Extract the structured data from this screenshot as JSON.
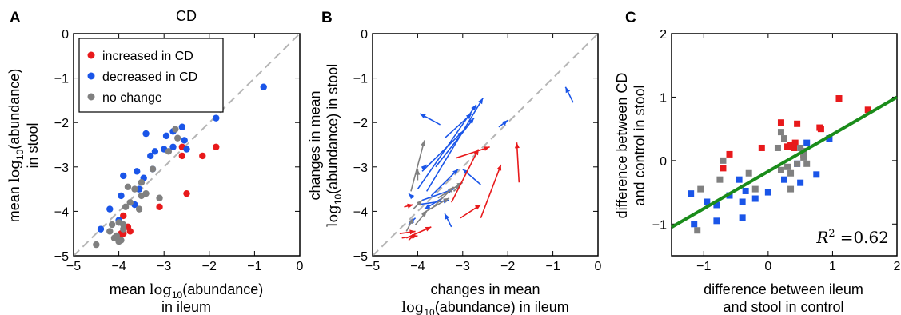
{
  "chart_data": [
    {
      "panel_letter": "A",
      "type": "scatter",
      "title": "CD",
      "xlabel_line1_pre": "mean ",
      "xlabel_math": "log",
      "xlabel_sub": "10",
      "xlabel_line1_post": "(abundance)",
      "xlabel_line2": "in ileum",
      "ylabel_line1_pre": "mean ",
      "ylabel_math": "log",
      "ylabel_sub": "10",
      "ylabel_line1_post": "(abundance)",
      "ylabel_line2": "in stool",
      "xlim": [
        -5,
        0
      ],
      "ylim": [
        -5,
        0
      ],
      "xticks": [
        "-5",
        "-4",
        "-3",
        "-2",
        "-1",
        "0"
      ],
      "yticks": [
        "-5",
        "-4",
        "-3",
        "-2",
        "-1",
        "0"
      ],
      "identity_line": true,
      "legend": [
        {
          "label": "increased in CD",
          "color": "#e8191b"
        },
        {
          "label": "decreased in CD",
          "color": "#1a55e8"
        },
        {
          "label": "no change",
          "color": "#808080"
        }
      ],
      "series": [
        {
          "name": "increased in CD",
          "color": "#e8191b",
          "points": [
            [
              -2.6,
              -2.55
            ],
            [
              -2.6,
              -2.75
            ],
            [
              -1.85,
              -2.55
            ],
            [
              -2.15,
              -2.75
            ],
            [
              -3.1,
              -3.9
            ],
            [
              -2.5,
              -3.6
            ],
            [
              -3.9,
              -4.1
            ],
            [
              -3.8,
              -4.35
            ],
            [
              -3.75,
              -4.45
            ],
            [
              -3.95,
              -4.5
            ],
            [
              -3.9,
              -4.5
            ]
          ]
        },
        {
          "name": "decreased in CD",
          "color": "#1a55e8",
          "points": [
            [
              -0.8,
              -1.2
            ],
            [
              -1.85,
              -1.9
            ],
            [
              -2.8,
              -2.2
            ],
            [
              -2.6,
              -2.1
            ],
            [
              -3.4,
              -2.25
            ],
            [
              -2.95,
              -2.3
            ],
            [
              -2.55,
              -2.4
            ],
            [
              -3.0,
              -2.6
            ],
            [
              -2.8,
              -2.55
            ],
            [
              -2.5,
              -2.6
            ],
            [
              -3.2,
              -2.65
            ],
            [
              -3.3,
              -2.75
            ],
            [
              -3.6,
              -3.1
            ],
            [
              -3.25,
              -3.05
            ],
            [
              -3.45,
              -3.25
            ],
            [
              -3.9,
              -3.2
            ],
            [
              -3.55,
              -3.5
            ],
            [
              -3.95,
              -3.65
            ],
            [
              -3.65,
              -3.85
            ],
            [
              -4.2,
              -3.95
            ],
            [
              -4.0,
              -4.2
            ],
            [
              -4.4,
              -4.4
            ]
          ]
        },
        {
          "name": "no change",
          "color": "#808080",
          "points": [
            [
              -2.75,
              -2.15
            ],
            [
              -2.7,
              -2.35
            ],
            [
              -2.9,
              -2.65
            ],
            [
              -3.25,
              -3.05
            ],
            [
              -3.5,
              -3.35
            ],
            [
              -3.65,
              -3.5
            ],
            [
              -3.8,
              -3.45
            ],
            [
              -3.4,
              -3.6
            ],
            [
              -3.5,
              -3.65
            ],
            [
              -3.1,
              -3.7
            ],
            [
              -3.75,
              -3.8
            ],
            [
              -3.85,
              -3.9
            ],
            [
              -3.55,
              -3.95
            ],
            [
              -4.0,
              -4.25
            ],
            [
              -3.9,
              -4.3
            ],
            [
              -4.15,
              -4.3
            ],
            [
              -4.2,
              -4.45
            ],
            [
              -3.9,
              -4.4
            ],
            [
              -4.05,
              -4.55
            ],
            [
              -3.95,
              -4.65
            ],
            [
              -4.1,
              -4.6
            ],
            [
              -4.0,
              -4.68
            ],
            [
              -4.5,
              -4.75
            ]
          ]
        }
      ]
    },
    {
      "panel_letter": "B",
      "type": "scatter",
      "xlabel_line1": "changes in mean",
      "xlabel_math": "log",
      "xlabel_sub": "10",
      "xlabel_line2_post": "(abundance) in ileum",
      "ylabel_line1": "changes in mean",
      "ylabel_math": "log",
      "ylabel_sub": "10",
      "ylabel_line2_post": "(abundance) in stool",
      "xlim": [
        -5,
        0
      ],
      "ylim": [
        -5,
        0
      ],
      "xticks": [
        "-5",
        "-4",
        "-3",
        "-2",
        "-1",
        "0"
      ],
      "yticks": [
        "-5",
        "-4",
        "-3",
        "-2",
        "-1",
        "0"
      ],
      "identity_line": true,
      "arrows": [
        {
          "color": "#1a55e8",
          "from": [
            -3.8,
            -3.55
          ],
          "to": [
            -2.55,
            -1.45
          ]
        },
        {
          "color": "#1a55e8",
          "from": [
            -4.0,
            -3.5
          ],
          "to": [
            -2.7,
            -1.6
          ]
        },
        {
          "color": "#1a55e8",
          "from": [
            -3.6,
            -3.0
          ],
          "to": [
            -2.75,
            -1.9
          ]
        },
        {
          "color": "#1a55e8",
          "from": [
            -3.4,
            -2.35
          ],
          "to": [
            -2.8,
            -1.8
          ]
        },
        {
          "color": "#1a55e8",
          "from": [
            -3.9,
            -3.1
          ],
          "to": [
            -3.0,
            -2.2
          ]
        },
        {
          "color": "#1a55e8",
          "from": [
            -3.5,
            -2.05
          ],
          "to": [
            -3.95,
            -1.8
          ]
        },
        {
          "color": "#1a55e8",
          "from": [
            -2.2,
            -2.1
          ],
          "to": [
            -2.0,
            -1.95
          ]
        },
        {
          "color": "#1a55e8",
          "from": [
            -0.55,
            -1.55
          ],
          "to": [
            -0.72,
            -1.2
          ]
        },
        {
          "color": "#1a55e8",
          "from": [
            -3.7,
            -3.65
          ],
          "to": [
            -3.1,
            -3.05
          ]
        },
        {
          "color": "#1a55e8",
          "from": [
            -3.9,
            -3.75
          ],
          "to": [
            -3.2,
            -3.5
          ]
        },
        {
          "color": "#1a55e8",
          "from": [
            -4.0,
            -3.85
          ],
          "to": [
            -3.3,
            -3.75
          ]
        },
        {
          "color": "#1a55e8",
          "from": [
            -2.6,
            -3.4
          ],
          "to": [
            -3.0,
            -3.05
          ]
        },
        {
          "color": "#1a55e8",
          "from": [
            -3.25,
            -4.35
          ],
          "to": [
            -3.4,
            -4.05
          ]
        },
        {
          "color": "#1a55e8",
          "from": [
            -3.45,
            -3.7
          ],
          "to": [
            -3.85,
            -3.95
          ]
        },
        {
          "color": "#1a55e8",
          "from": [
            -4.1,
            -3.7
          ],
          "to": [
            -4.2,
            -3.6
          ]
        },
        {
          "color": "#1a55e8",
          "from": [
            -3.9,
            -3.05
          ],
          "to": [
            -3.8,
            -2.95
          ]
        },
        {
          "color": "#1a55e8",
          "from": [
            -4.05,
            -4.15
          ],
          "to": [
            -4.2,
            -4.3
          ]
        },
        {
          "color": "#808080",
          "from": [
            -4.15,
            -3.55
          ],
          "to": [
            -3.85,
            -2.4
          ]
        },
        {
          "color": "#808080",
          "from": [
            -4.0,
            -3.3
          ],
          "to": [
            -4.0,
            -3.05
          ]
        },
        {
          "color": "#808080",
          "from": [
            -3.55,
            -3.7
          ],
          "to": [
            -3.0,
            -3.35
          ]
        },
        {
          "color": "#808080",
          "from": [
            -3.9,
            -4.05
          ],
          "to": [
            -3.3,
            -3.7
          ]
        },
        {
          "color": "#808080",
          "from": [
            -3.7,
            -3.95
          ],
          "to": [
            -3.2,
            -3.45
          ]
        },
        {
          "color": "#808080",
          "from": [
            -4.1,
            -3.95
          ],
          "to": [
            -3.9,
            -3.75
          ]
        },
        {
          "color": "#808080",
          "from": [
            -4.05,
            -4.3
          ],
          "to": [
            -3.8,
            -4.0
          ]
        },
        {
          "color": "#808080",
          "from": [
            -4.25,
            -4.45
          ],
          "to": [
            -4.1,
            -4.15
          ]
        },
        {
          "color": "#808080",
          "from": [
            -3.2,
            -3.55
          ],
          "to": [
            -3.05,
            -3.4
          ]
        },
        {
          "color": "#e8191b",
          "from": [
            -3.15,
            -2.8
          ],
          "to": [
            -2.4,
            -2.55
          ]
        },
        {
          "color": "#e8191b",
          "from": [
            -3.25,
            -3.8
          ],
          "to": [
            -2.65,
            -2.6
          ]
        },
        {
          "color": "#e8191b",
          "from": [
            -2.6,
            -4.15
          ],
          "to": [
            -2.15,
            -2.95
          ]
        },
        {
          "color": "#e8191b",
          "from": [
            -1.75,
            -3.35
          ],
          "to": [
            -1.8,
            -2.45
          ]
        },
        {
          "color": "#e8191b",
          "from": [
            -3.05,
            -4.15
          ],
          "to": [
            -2.6,
            -3.85
          ]
        },
        {
          "color": "#e8191b",
          "from": [
            -4.3,
            -3.9
          ],
          "to": [
            -4.1,
            -3.85
          ]
        },
        {
          "color": "#e8191b",
          "from": [
            -4.25,
            -4.6
          ],
          "to": [
            -3.7,
            -4.35
          ]
        },
        {
          "color": "#e8191b",
          "from": [
            -4.4,
            -4.5
          ],
          "to": [
            -4.05,
            -4.45
          ]
        },
        {
          "color": "#e8191b",
          "from": [
            -4.35,
            -4.6
          ],
          "to": [
            -4.0,
            -4.55
          ]
        },
        {
          "color": "#e8191b",
          "from": [
            -4.2,
            -4.65
          ],
          "to": [
            -4.05,
            -4.5
          ]
        }
      ]
    },
    {
      "panel_letter": "C",
      "type": "scatter",
      "xlabel_line1": "difference between ileum",
      "xlabel_line2": "and stool in control",
      "ylabel_line1": "difference between CD",
      "ylabel_line2": "and control in stool",
      "xlim": [
        -1.5,
        2
      ],
      "ylim": [
        -1.5,
        2
      ],
      "xticks": [
        "-1",
        "0",
        "1",
        "2"
      ],
      "yticks": [
        "-1",
        "0",
        "1",
        "2"
      ],
      "annotation_math": "R",
      "annotation_sup": "2",
      "annotation_value": "=0.62",
      "fit_line": {
        "color": "#1a8c1a",
        "x": [
          -1.5,
          2.0
        ],
        "y": [
          -1.05,
          1.0
        ]
      },
      "series": [
        {
          "name": "red",
          "color": "#e8191b",
          "points": [
            [
              1.1,
              0.98
            ],
            [
              1.55,
              0.8
            ],
            [
              0.2,
              0.6
            ],
            [
              0.45,
              0.58
            ],
            [
              0.8,
              0.52
            ],
            [
              0.82,
              0.5
            ],
            [
              -0.1,
              0.2
            ],
            [
              0.3,
              0.22
            ],
            [
              0.35,
              0.25
            ],
            [
              0.4,
              0.2
            ],
            [
              0.42,
              0.28
            ],
            [
              -0.6,
              0.1
            ],
            [
              0.55,
              0.1
            ],
            [
              -0.7,
              -0.12
            ]
          ]
        },
        {
          "name": "blue",
          "color": "#1a55e8",
          "points": [
            [
              0.95,
              0.35
            ],
            [
              0.6,
              0.28
            ],
            [
              0.45,
              -0.05
            ],
            [
              0.5,
              -0.35
            ],
            [
              0.25,
              -0.3
            ],
            [
              0.0,
              -0.5
            ],
            [
              -0.45,
              -0.3
            ],
            [
              -0.6,
              -0.55
            ],
            [
              -0.35,
              -0.48
            ],
            [
              -0.2,
              -0.6
            ],
            [
              -0.4,
              -0.65
            ],
            [
              -0.4,
              -0.9
            ],
            [
              -0.8,
              -0.7
            ],
            [
              -0.95,
              -0.65
            ],
            [
              -1.2,
              -0.52
            ],
            [
              -1.15,
              -1.0
            ],
            [
              -0.8,
              -0.95
            ],
            [
              0.75,
              -0.22
            ]
          ]
        },
        {
          "name": "gray",
          "color": "#808080",
          "points": [
            [
              0.2,
              0.45
            ],
            [
              0.25,
              0.35
            ],
            [
              0.15,
              0.2
            ],
            [
              0.5,
              0.2
            ],
            [
              0.55,
              0.15
            ],
            [
              -0.7,
              0.0
            ],
            [
              0.55,
              0.05
            ],
            [
              0.6,
              -0.05
            ],
            [
              0.45,
              -0.05
            ],
            [
              0.2,
              -0.15
            ],
            [
              0.3,
              -0.1
            ],
            [
              0.35,
              -0.2
            ],
            [
              -0.3,
              -0.2
            ],
            [
              -0.75,
              -0.3
            ],
            [
              -1.05,
              -0.45
            ],
            [
              0.35,
              -0.45
            ],
            [
              -0.2,
              -0.45
            ],
            [
              -1.1,
              -1.1
            ]
          ]
        }
      ]
    }
  ]
}
